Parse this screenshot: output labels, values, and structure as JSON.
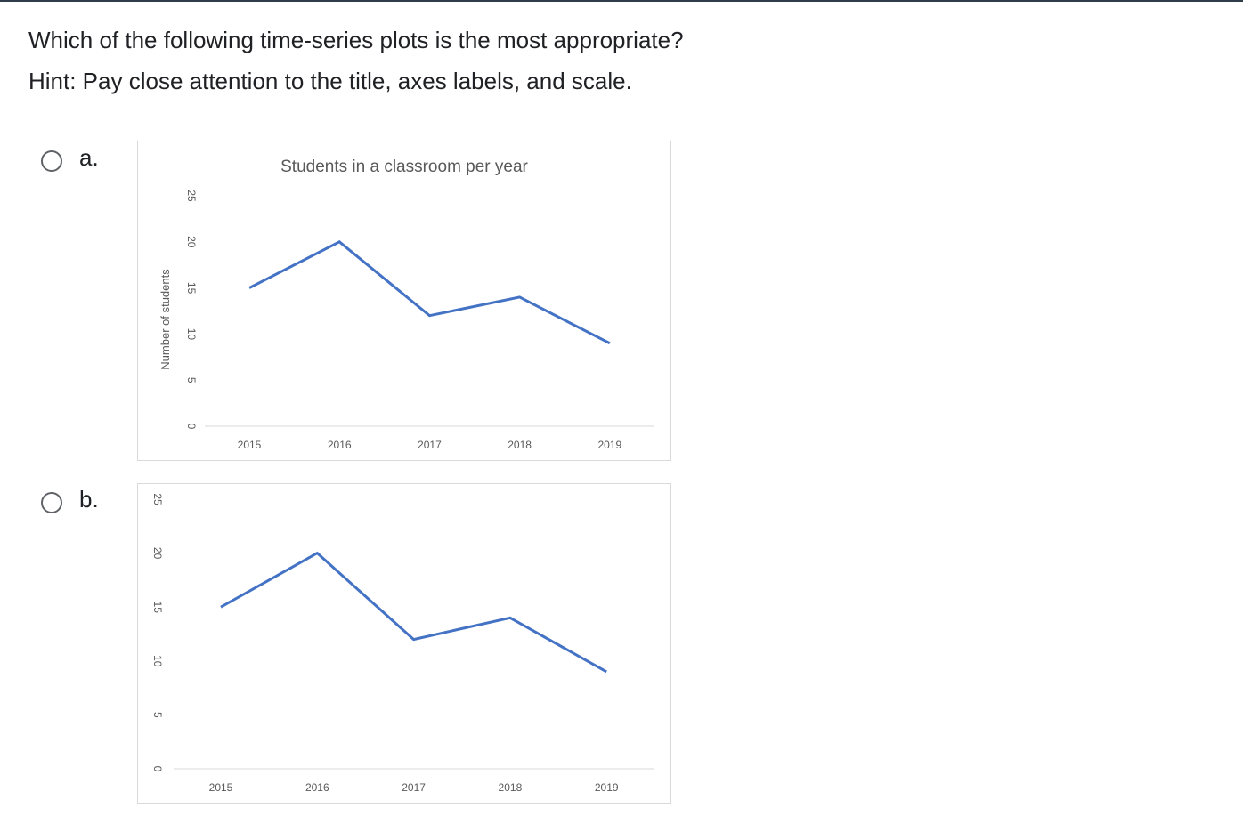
{
  "question": {
    "text": "Which of the following time-series plots is the most appropriate?",
    "hint": "Hint: Pay close attention to the title, axes labels, and scale."
  },
  "options": [
    {
      "letter": "a.",
      "selected": false
    },
    {
      "letter": "b.",
      "selected": false
    }
  ],
  "colors": {
    "line": "#4472c4",
    "axis_text": "#595959",
    "border": "#d9d9d9"
  },
  "icons": {
    "radio": "radio-button-icon"
  },
  "chart_data": [
    {
      "type": "line",
      "title": "Students in a classroom per year",
      "ylabel": "Number of students",
      "xlabel": "",
      "categories": [
        "2015",
        "2016",
        "2017",
        "2018",
        "2019"
      ],
      "series": [
        {
          "values": [
            15,
            20,
            12,
            14,
            9
          ]
        }
      ],
      "ylim": [
        0,
        25
      ],
      "yticks": [
        "0",
        "5",
        "10",
        "15",
        "20",
        "25"
      ],
      "ytick_rotation": "rotated 90°",
      "grid": false,
      "legend": "none"
    },
    {
      "type": "line",
      "title": "",
      "ylabel": "",
      "xlabel": "",
      "categories": [
        "2015",
        "2016",
        "2017",
        "2018",
        "2019"
      ],
      "series": [
        {
          "values": [
            15,
            20,
            12,
            14,
            9
          ]
        }
      ],
      "ylim": [
        0,
        25
      ],
      "yticks": [
        "0",
        "5",
        "10",
        "15",
        "20",
        "25"
      ],
      "ytick_rotation": "rotated 90°",
      "grid": false,
      "legend": "none"
    }
  ]
}
